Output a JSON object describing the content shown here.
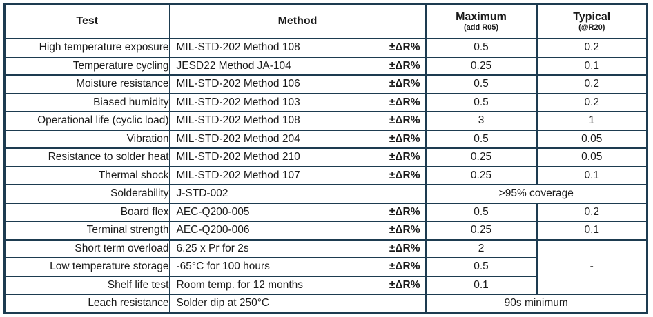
{
  "colors": {
    "border": "#1d3b50",
    "text": "#1a1a1a",
    "background": "#ffffff"
  },
  "table": {
    "header": {
      "test": "Test",
      "method": "Method",
      "maximum": "Maximum",
      "maximum_sub": "(add R05)",
      "typical": "Typical",
      "typical_sub": "(@R20)"
    },
    "rows": [
      {
        "test": "High temperature exposure",
        "method": "MIL-STD-202 Method 108",
        "dr": "±ΔR%",
        "maximum": "0.5",
        "typical": "0.2"
      },
      {
        "test": "Temperature cycling",
        "method": "JESD22 Method JA-104",
        "dr": "±ΔR%",
        "maximum": "0.25",
        "typical": "0.1"
      },
      {
        "test": "Moisture resistance",
        "method": "MIL-STD-202 Method 106",
        "dr": "±ΔR%",
        "maximum": "0.5",
        "typical": "0.2"
      },
      {
        "test": "Biased humidity",
        "method": "MIL-STD-202 Method 103",
        "dr": "±ΔR%",
        "maximum": "0.5",
        "typical": "0.2"
      },
      {
        "test": "Operational life (cyclic load)",
        "method": "MIL-STD-202 Method 108",
        "dr": "±ΔR%",
        "maximum": "3",
        "typical": "1"
      },
      {
        "test": "Vibration",
        "method": "MIL-STD-202 Method 204",
        "dr": "±ΔR%",
        "maximum": "0.5",
        "typical": "0.05"
      },
      {
        "test": "Resistance to solder heat",
        "method": "MIL-STD-202 Method 210",
        "dr": "±ΔR%",
        "maximum": "0.25",
        "typical": "0.05"
      },
      {
        "test": "Thermal shock",
        "method": "MIL-STD-202 Method 107",
        "dr": "±ΔR%",
        "maximum": "0.25",
        "typical": "0.1"
      },
      {
        "test": "Solderability",
        "method": "J-STD-002",
        "merged": ">95% coverage"
      },
      {
        "test": "Board flex",
        "method": "AEC-Q200-005",
        "dr": "±ΔR%",
        "maximum": "0.5",
        "typical": "0.2"
      },
      {
        "test": "Terminal strength",
        "method": "AEC-Q200-006",
        "dr": "±ΔR%",
        "maximum": "0.25",
        "typical": "0.1"
      },
      {
        "test": "Short term overload",
        "method": "6.25 x Pr for 2s",
        "dr": "±ΔR%",
        "maximum": "2",
        "typical": {
          "value": "-",
          "rowspan": 3
        }
      },
      {
        "test": "Low temperature storage",
        "method": "-65°C for 100 hours",
        "dr": "±ΔR%",
        "maximum": "0.5"
      },
      {
        "test": "Shelf life test",
        "method": "Room temp. for 12 months",
        "dr": "±ΔR%",
        "maximum": "0.1"
      },
      {
        "test": "Leach resistance",
        "method": "Solder dip at 250°C",
        "merged": "90s minimum"
      }
    ]
  }
}
